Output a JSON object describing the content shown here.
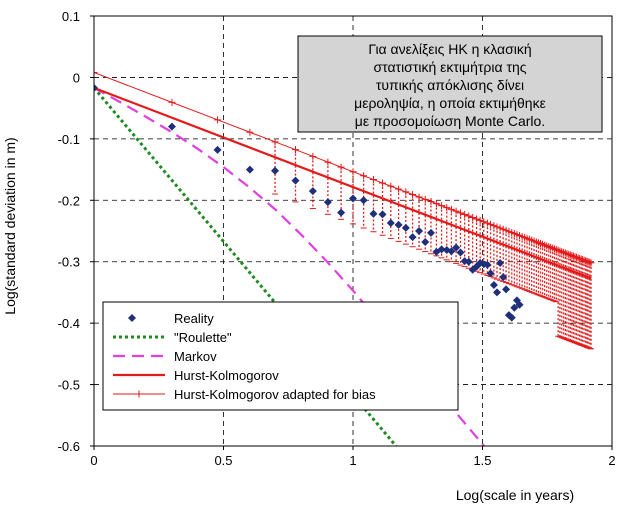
{
  "chart_data": {
    "type": "line",
    "title": "",
    "xlabel": "Log(scale in years)",
    "ylabel": "Log(standard deviation in m)",
    "xlim": [
      0,
      2
    ],
    "ylim": [
      -0.6,
      0.1
    ],
    "xticks": [
      "0",
      "0.5",
      "1",
      "1.5",
      "2"
    ],
    "yticks": [
      "0.1",
      "0",
      "-0.1",
      "-0.2",
      "-0.3",
      "-0.4",
      "-0.5",
      "-0.6"
    ],
    "grid": true,
    "legend_position": "bottom-left",
    "annotation": [
      "Για ανελίξεις ΗΚ η κλασική",
      "στατιστική εκτιμήτρια της",
      "τυπικής απόκλισης δίνει",
      "μεροληψία, η οποία εκτιμήθηκε",
      "με προσομοίωση Monte Carlo."
    ],
    "colors": {
      "reality": "#1f2f7a",
      "roulette": "#1f8a1f",
      "markov": "#e040e0",
      "hk": "#e41a1a",
      "hk_adapted": "#e41a1a",
      "annotation_bg": "#d4d4d4"
    },
    "series": [
      {
        "name": "Reality",
        "style": "markers",
        "points": [
          [
            0.0,
            -0.017
          ],
          [
            0.301,
            -0.08
          ],
          [
            0.477,
            -0.118
          ],
          [
            0.602,
            -0.15
          ],
          [
            0.699,
            -0.152
          ],
          [
            0.778,
            -0.168
          ],
          [
            0.845,
            -0.185
          ],
          [
            0.903,
            -0.203
          ],
          [
            0.954,
            -0.22
          ],
          [
            1.0,
            -0.197
          ],
          [
            1.041,
            -0.2
          ],
          [
            1.079,
            -0.222
          ],
          [
            1.114,
            -0.223
          ],
          [
            1.146,
            -0.237
          ],
          [
            1.176,
            -0.24
          ],
          [
            1.204,
            -0.245
          ],
          [
            1.23,
            -0.26
          ],
          [
            1.255,
            -0.25
          ],
          [
            1.279,
            -0.268
          ],
          [
            1.301,
            -0.253
          ],
          [
            1.322,
            -0.284
          ],
          [
            1.342,
            -0.28
          ],
          [
            1.362,
            -0.281
          ],
          [
            1.38,
            -0.283
          ],
          [
            1.398,
            -0.277
          ],
          [
            1.415,
            -0.285
          ],
          [
            1.431,
            -0.299
          ],
          [
            1.447,
            -0.3
          ],
          [
            1.462,
            -0.313
          ],
          [
            1.477,
            -0.308
          ],
          [
            1.491,
            -0.302
          ],
          [
            1.505,
            -0.304
          ],
          [
            1.519,
            -0.305
          ],
          [
            1.531,
            -0.319
          ],
          [
            1.544,
            -0.338
          ],
          [
            1.556,
            -0.35
          ],
          [
            1.568,
            -0.302
          ],
          [
            1.58,
            -0.325
          ],
          [
            1.591,
            -0.345
          ],
          [
            1.602,
            -0.387
          ],
          [
            1.613,
            -0.391
          ],
          [
            1.623,
            -0.375
          ],
          [
            1.633,
            -0.363
          ],
          [
            1.643,
            -0.37
          ]
        ]
      },
      {
        "name": "\"Roulette\"",
        "style": "dotted",
        "points": [
          [
            0,
            -0.017
          ],
          [
            0.1,
            -0.067
          ],
          [
            0.2,
            -0.117
          ],
          [
            0.3,
            -0.167
          ],
          [
            0.4,
            -0.217
          ],
          [
            0.5,
            -0.267
          ],
          [
            0.6,
            -0.317
          ],
          [
            0.7,
            -0.367
          ],
          [
            0.8,
            -0.417
          ],
          [
            0.9,
            -0.467
          ],
          [
            1.0,
            -0.517
          ],
          [
            1.1,
            -0.567
          ],
          [
            1.166,
            -0.6
          ]
        ]
      },
      {
        "name": "Markov",
        "style": "dashed",
        "points": [
          [
            0,
            -0.017
          ],
          [
            0.1,
            -0.04
          ],
          [
            0.2,
            -0.064
          ],
          [
            0.3,
            -0.089
          ],
          [
            0.4,
            -0.116
          ],
          [
            0.5,
            -0.146
          ],
          [
            0.6,
            -0.179
          ],
          [
            0.7,
            -0.215
          ],
          [
            0.8,
            -0.256
          ],
          [
            0.9,
            -0.3
          ],
          [
            1.0,
            -0.347
          ],
          [
            1.1,
            -0.397
          ],
          [
            1.2,
            -0.447
          ],
          [
            1.3,
            -0.497
          ],
          [
            1.4,
            -0.547
          ],
          [
            1.5,
            -0.597
          ],
          [
            1.506,
            -0.6
          ]
        ]
      },
      {
        "name": "Hurst-Kolmogorov",
        "style": "solid",
        "points": [
          [
            0,
            -0.017
          ],
          [
            1.92,
            -0.327
          ]
        ]
      },
      {
        "name": "Hurst-Kolmogorov adapted for bias",
        "style": "line-plus",
        "x": [
          0.0,
          0.301,
          0.477,
          0.602,
          0.699,
          0.778,
          0.845,
          0.903,
          0.954,
          1.0,
          1.041,
          1.079,
          1.114,
          1.146,
          1.176,
          1.204,
          1.23,
          1.255,
          1.279,
          1.301,
          1.322,
          1.342,
          1.362,
          1.38,
          1.398,
          1.415,
          1.431,
          1.447,
          1.462,
          1.477,
          1.491,
          1.505,
          1.519,
          1.531,
          1.544,
          1.556,
          1.568,
          1.58,
          1.591,
          1.602,
          1.613,
          1.623,
          1.633,
          1.643,
          1.653,
          1.663,
          1.672,
          1.681,
          1.69,
          1.699,
          1.708,
          1.716,
          1.724,
          1.732,
          1.74,
          1.748,
          1.756,
          1.763,
          1.771,
          1.778,
          1.785,
          1.792,
          1.799,
          1.806,
          1.813,
          1.82,
          1.826,
          1.833,
          1.839,
          1.845,
          1.851,
          1.857,
          1.863,
          1.869,
          1.875,
          1.881,
          1.886,
          1.892,
          1.898,
          1.903,
          1.908,
          1.914,
          1.919
        ],
        "y_offset": 0.025
      }
    ],
    "error_bars": {
      "style": "dotted",
      "low_offset": 0.06,
      "low_offset_tail_range": [
        1.79,
        1.919
      ],
      "low_offset_tail": 0.115
    }
  },
  "legend": {
    "entries": [
      "Reality",
      "\"Roulette\"",
      "Markov",
      "Hurst-Kolmogorov",
      "Hurst-Kolmogorov adapted for bias"
    ]
  }
}
